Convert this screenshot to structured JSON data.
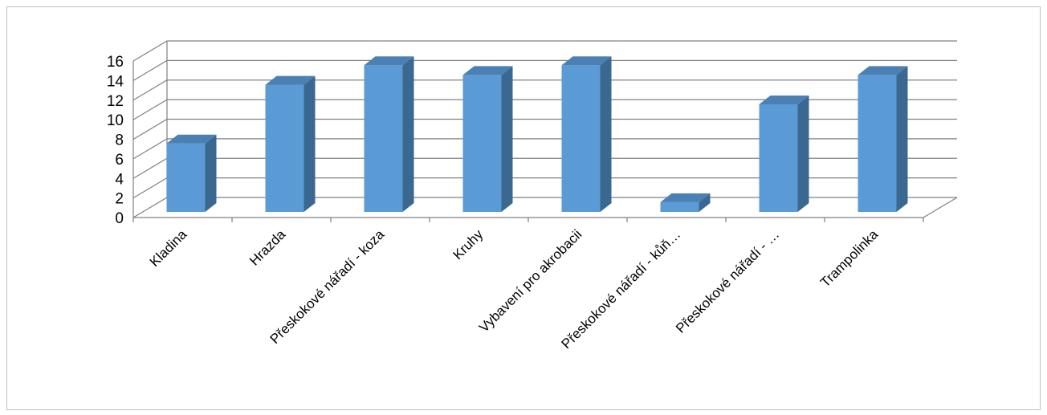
{
  "chart_data": {
    "type": "bar",
    "style": "3d-column",
    "title": "",
    "xlabel": "",
    "ylabel": "",
    "categories": [
      "Kladina",
      "Hrazda",
      "Přeskokové nářadí - koza",
      "Kruhy",
      "Vybavení pro akrobacii",
      "Přeskokové nářadí - kůň…",
      "Přeskokové nářadí - …",
      "Trampolinka"
    ],
    "values": [
      7,
      13,
      15,
      14,
      15,
      1,
      11,
      14
    ],
    "ylim": [
      0,
      16
    ],
    "yticks": [
      0,
      2,
      4,
      6,
      8,
      10,
      12,
      14,
      16
    ],
    "grid": true,
    "legend": "none",
    "colors": {
      "bar_front": "#5B9BD5",
      "bar_side": "#3A6890",
      "bar_top": "#4A80B4",
      "gridline": "#808080",
      "frame": "#bfbfbf"
    }
  }
}
